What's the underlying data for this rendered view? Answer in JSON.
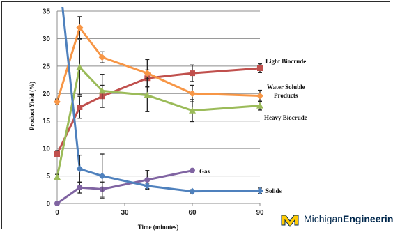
{
  "chart_data": {
    "type": "line",
    "title": "",
    "xlabel": "Time (minutes)",
    "ylabel": "Product Yield (%)",
    "xlim": [
      0,
      90
    ],
    "ylim": [
      0,
      35
    ],
    "xticks": [
      "0",
      "30",
      "60",
      "90"
    ],
    "yticks": [
      "0",
      "5",
      "10",
      "15",
      "20",
      "25",
      "30",
      "35"
    ],
    "grid": "horizontal",
    "series": [
      {
        "name": "Light Biocrude",
        "color": "#c0504d",
        "marker": "square",
        "x": [
          0,
          10,
          20,
          40,
          60,
          90
        ],
        "y": [
          9.0,
          17.5,
          19.5,
          22.8,
          23.7,
          24.6
        ],
        "err": [
          0.5,
          2.0,
          2.0,
          1.5,
          1.5,
          0.8
        ]
      },
      {
        "name": "Water Soluble Products",
        "color": "#f79646",
        "marker": "diamond",
        "x": [
          0,
          10,
          20,
          40,
          60,
          90
        ],
        "y": [
          18.5,
          32.0,
          26.6,
          23.7,
          20.0,
          19.6
        ],
        "err": [
          0.5,
          2.0,
          1.0,
          2.5,
          1.5,
          1.0
        ]
      },
      {
        "name": "Heavy Biocrude",
        "color": "#9bbb59",
        "marker": "triangle",
        "x": [
          0,
          10,
          20,
          40,
          60,
          90
        ],
        "y": [
          4.8,
          24.8,
          20.5,
          19.7,
          16.9,
          17.8
        ],
        "err": [
          0.5,
          5.0,
          3.0,
          3.0,
          2.0,
          0.8
        ]
      },
      {
        "name": "Gas",
        "color": "#8064a2",
        "marker": "circle",
        "x": [
          0,
          10,
          20,
          40,
          60
        ],
        "y": [
          0,
          2.9,
          2.6,
          4.3,
          6.0
        ],
        "err": [
          0,
          1.0,
          1.3,
          1.7,
          0
        ]
      },
      {
        "name": "Solids",
        "color": "#4f81bd",
        "marker": "diamond",
        "x": [
          0,
          10,
          20,
          40,
          60,
          90
        ],
        "y": [
          45,
          6.3,
          5.0,
          3.2,
          2.2,
          2.3
        ],
        "err": [
          0,
          2.5,
          4.0,
          0.5,
          0.3,
          0.5
        ]
      }
    ]
  },
  "logo": {
    "word_regular": "Michigan",
    "word_bold": "Engineering",
    "colors": {
      "blue": "#00274c",
      "maize": "#ffcb05"
    }
  }
}
